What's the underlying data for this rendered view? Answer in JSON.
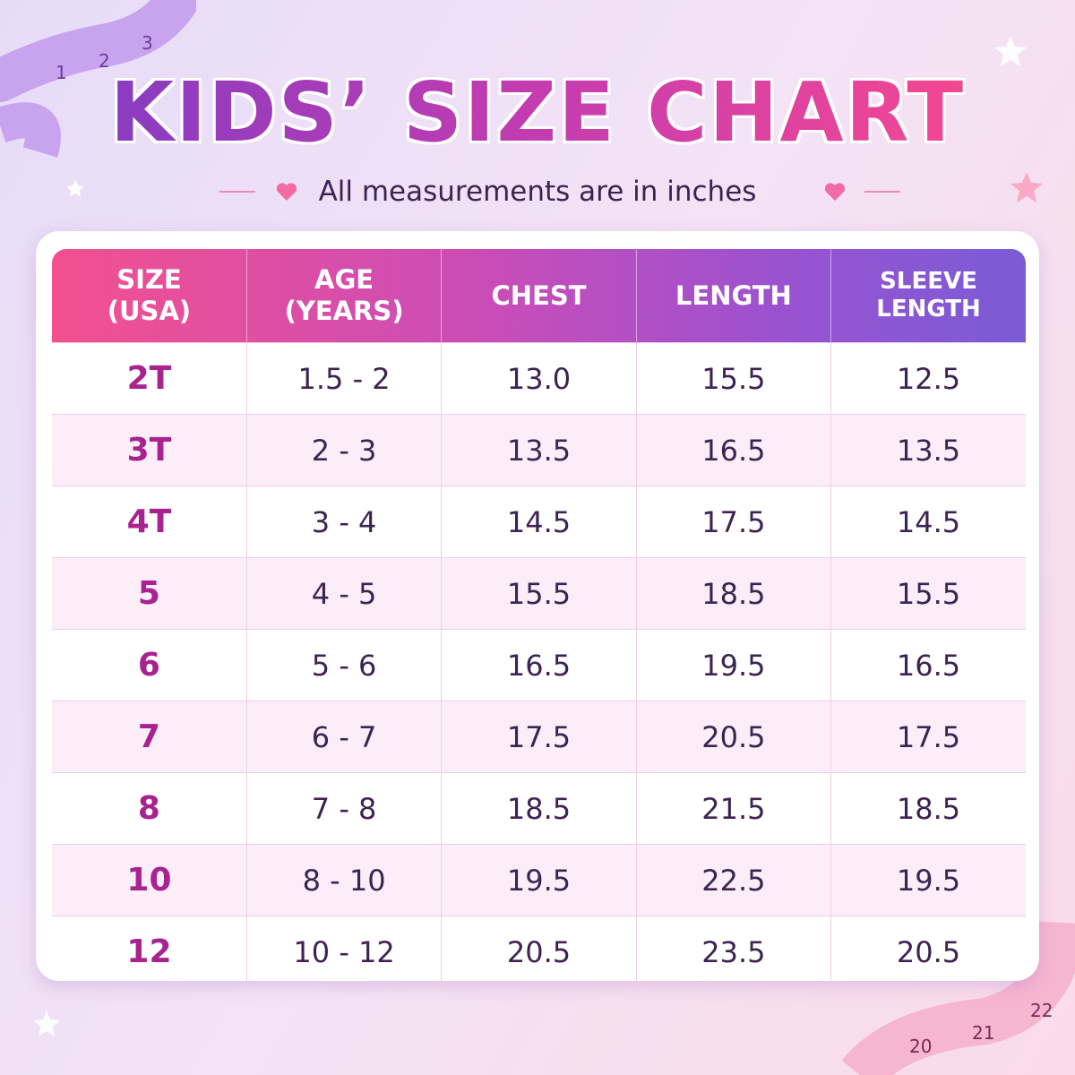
{
  "header": {
    "title": "KIDS’ SIZE CHART",
    "subtitle": "All measurements are in inches"
  },
  "table": {
    "columns": [
      "SIZE\n(USA)",
      "AGE\n(YEARS)",
      "CHEST",
      "LENGTH",
      "SLEEVE LENGTH"
    ],
    "rows": [
      [
        "2T",
        "1.5 - 2",
        "13.0",
        "15.5",
        "12.5"
      ],
      [
        "3T",
        "2 - 3",
        "13.5",
        "16.5",
        "13.5"
      ],
      [
        "4T",
        "3 - 4",
        "14.5",
        "17.5",
        "14.5"
      ],
      [
        "5",
        "4 - 5",
        "15.5",
        "18.5",
        "15.5"
      ],
      [
        "6",
        "5 - 6",
        "16.5",
        "19.5",
        "16.5"
      ],
      [
        "7",
        "6 - 7",
        "17.5",
        "20.5",
        "17.5"
      ],
      [
        "8",
        "7 - 8",
        "18.5",
        "21.5",
        "18.5"
      ],
      [
        "10",
        "8 - 10",
        "19.5",
        "22.5",
        "19.5"
      ],
      [
        "12",
        "10 - 12",
        "20.5",
        "23.5",
        "20.5"
      ]
    ]
  },
  "decor": {
    "tape_top": [
      "1",
      "2",
      "3"
    ],
    "tape_bottom": [
      "20",
      "21",
      "22"
    ]
  }
}
